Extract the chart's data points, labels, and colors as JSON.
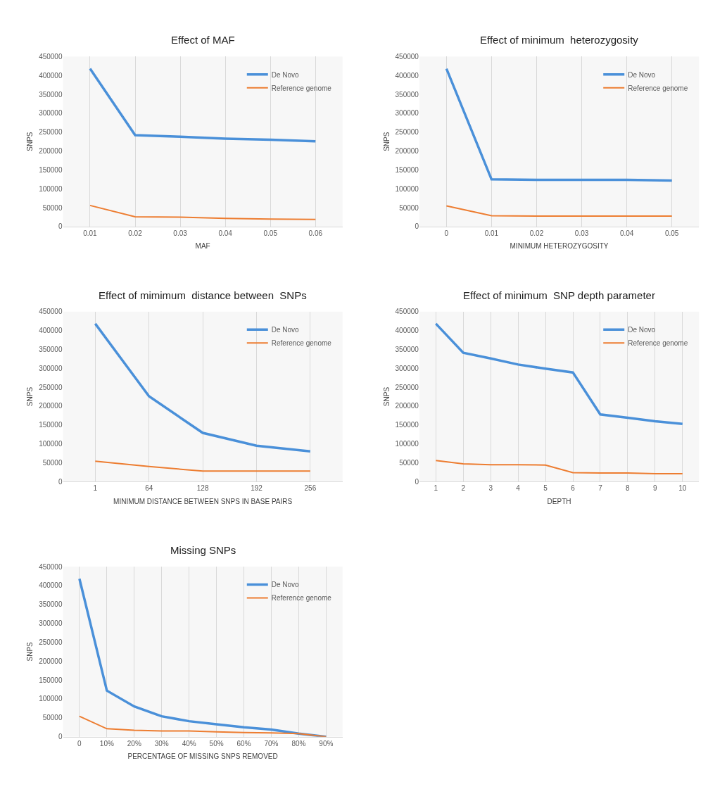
{
  "chart_data": [
    {
      "type": "line",
      "title": "Effect of MAF",
      "xlabel": "MAF",
      "ylabel": "SNPS",
      "categories": [
        "0.01",
        "0.02",
        "0.03",
        "0.04",
        "0.05",
        "0.06"
      ],
      "ylim": [
        0,
        450000
      ],
      "yticks": [
        0,
        50000,
        100000,
        150000,
        200000,
        250000,
        300000,
        350000,
        400000,
        450000
      ],
      "grid": "x",
      "legend": "top right",
      "series": [
        {
          "name": "De Novo",
          "color": "#4a90d9",
          "values": [
            418000,
            242000,
            238000,
            233000,
            230000,
            226000
          ]
        },
        {
          "name": "Reference genome",
          "color": "#ed7d31",
          "values": [
            56000,
            26000,
            25000,
            22000,
            20000,
            19000
          ]
        }
      ]
    },
    {
      "type": "line",
      "title": "Effect of minimum  heterozygosity",
      "xlabel": "MINIMUM HETEROZYGOSITY",
      "ylabel": "SNPS",
      "categories": [
        "0",
        "0.01",
        "0.02",
        "0.03",
        "0.04",
        "0.05"
      ],
      "ylim": [
        0,
        450000
      ],
      "yticks": [
        0,
        50000,
        100000,
        150000,
        200000,
        250000,
        300000,
        350000,
        400000,
        450000
      ],
      "grid": "x",
      "legend": "top right",
      "series": [
        {
          "name": "De Novo",
          "color": "#4a90d9",
          "values": [
            418000,
            125000,
            124000,
            124000,
            124000,
            122000
          ]
        },
        {
          "name": "Reference genome",
          "color": "#ed7d31",
          "values": [
            55000,
            29000,
            28000,
            28000,
            28000,
            28000
          ]
        }
      ]
    },
    {
      "type": "line",
      "title": "Effect of mimimum  distance between  SNPs",
      "xlabel": "MINIMUM DISTANCE BETWEEN SNPS IN BASE PAIRS",
      "ylabel": "SNPS",
      "categories": [
        "1",
        "64",
        "128",
        "192",
        "256"
      ],
      "ylim": [
        0,
        450000
      ],
      "yticks": [
        0,
        50000,
        100000,
        150000,
        200000,
        250000,
        300000,
        350000,
        400000,
        450000
      ],
      "grid": "x",
      "legend": "top right",
      "series": [
        {
          "name": "De Novo",
          "color": "#4a90d9",
          "values": [
            418000,
            226000,
            129000,
            95000,
            80000
          ]
        },
        {
          "name": "Reference genome",
          "color": "#ed7d31",
          "values": [
            54000,
            40000,
            28000,
            28000,
            28000
          ]
        }
      ]
    },
    {
      "type": "line",
      "title": "Effect of minimum  SNP depth parameter",
      "xlabel": "DEPTH",
      "ylabel": "SNPS",
      "categories": [
        "1",
        "2",
        "3",
        "4",
        "5",
        "6",
        "7",
        "8",
        "9",
        "10"
      ],
      "ylim": [
        0,
        450000
      ],
      "yticks": [
        0,
        50000,
        100000,
        150000,
        200000,
        250000,
        300000,
        350000,
        400000,
        450000
      ],
      "grid": "x",
      "legend": "top right",
      "series": [
        {
          "name": "De Novo",
          "color": "#4a90d9",
          "values": [
            418000,
            341000,
            326000,
            310000,
            299000,
            289000,
            178000,
            169000,
            160000,
            153000
          ]
        },
        {
          "name": "Reference genome",
          "color": "#ed7d31",
          "values": [
            56000,
            47000,
            45000,
            45000,
            44000,
            24000,
            23000,
            23000,
            21000,
            21000
          ]
        }
      ]
    },
    {
      "type": "line",
      "title": "Missing SNPs",
      "xlabel": "PERCENTAGE OF MISSING SNPS REMOVED",
      "ylabel": "SNPS",
      "categories": [
        "0",
        "10%",
        "20%",
        "30%",
        "40%",
        "50%",
        "60%",
        "70%",
        "80%",
        "90%"
      ],
      "ylim": [
        0,
        450000
      ],
      "yticks": [
        0,
        50000,
        100000,
        150000,
        200000,
        250000,
        300000,
        350000,
        400000,
        450000
      ],
      "grid": "x",
      "legend": "top right",
      "series": [
        {
          "name": "De Novo",
          "color": "#4a90d9",
          "values": [
            418000,
            122000,
            80000,
            54000,
            41000,
            33000,
            25000,
            19000,
            8000,
            0
          ]
        },
        {
          "name": "Reference genome",
          "color": "#ed7d31",
          "values": [
            54000,
            21000,
            17000,
            15000,
            15000,
            13000,
            11000,
            10000,
            8000,
            0
          ]
        }
      ]
    }
  ]
}
